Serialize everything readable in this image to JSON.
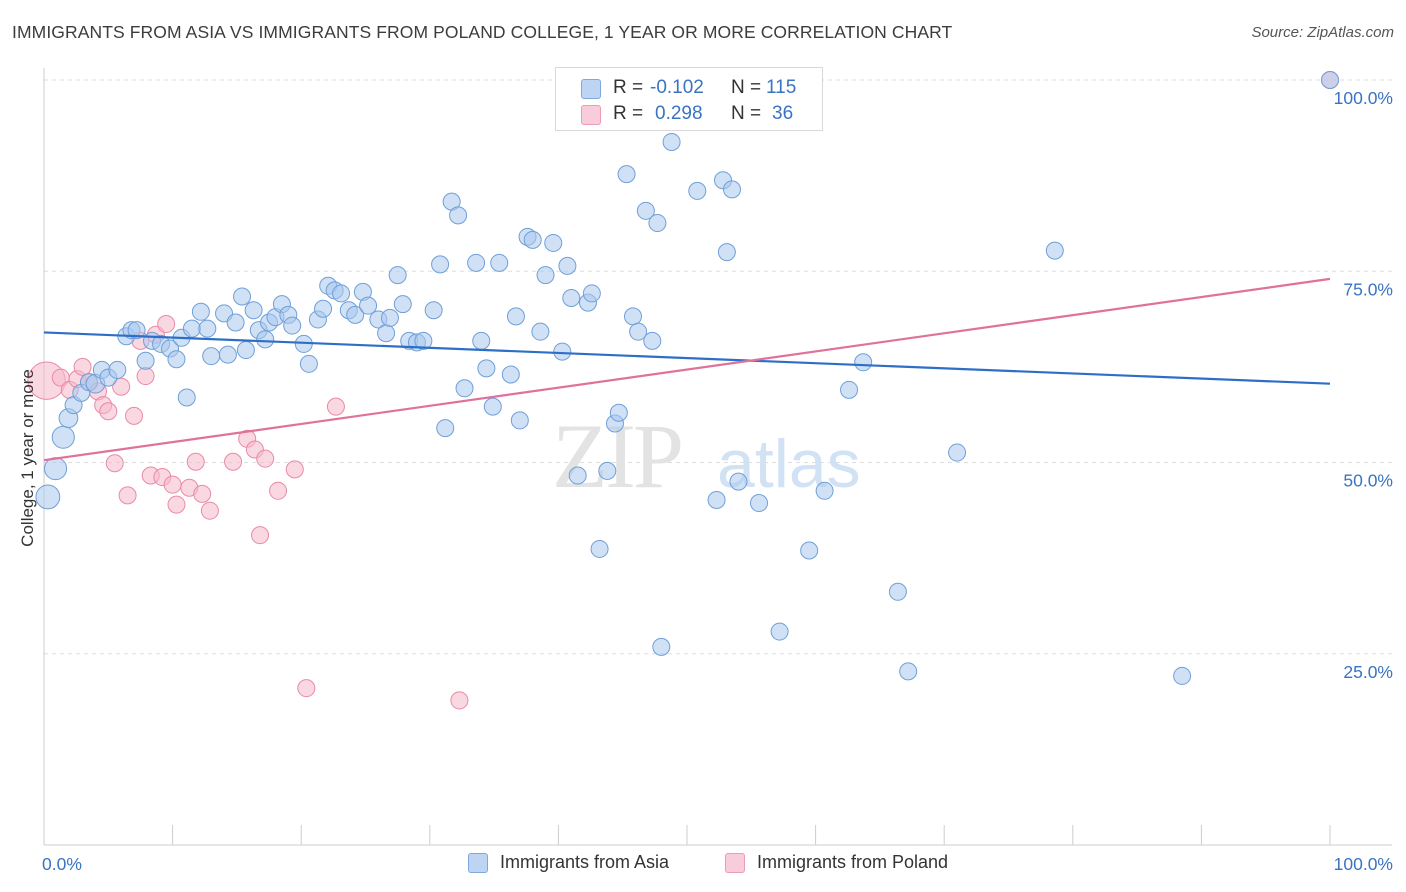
{
  "title": "IMMIGRANTS FROM ASIA VS IMMIGRANTS FROM POLAND COLLEGE, 1 YEAR OR MORE CORRELATION CHART",
  "source": "Source: ZipAtlas.com",
  "watermark": {
    "zip": "ZIP",
    "atlas": "atlas"
  },
  "legend_top": [
    {
      "r_label": "R =",
      "r_value": "-0.102",
      "n_label": "N =",
      "n_value": "115"
    },
    {
      "r_label": "R =",
      "r_value": "0.298",
      "n_label": "N =",
      "n_value": "36"
    }
  ],
  "legend_bottom": [
    {
      "label": "Immigrants from Asia"
    },
    {
      "label": "Immigrants from Poland"
    }
  ],
  "colors": {
    "asia_fill": "#aac8ee",
    "asia_stroke": "#6f9fd8",
    "asia_line": "#2d6fc7",
    "poland_fill": "#f5b8cb",
    "poland_stroke": "#e98aa8",
    "poland_line": "#e0719a",
    "axis_text": "#3a73c4",
    "grid": "#dddddd"
  },
  "chart_data": {
    "type": "scatter",
    "title": "IMMIGRANTS FROM ASIA VS IMMIGRANTS FROM POLAND COLLEGE, 1 YEAR OR MORE CORRELATION CHART",
    "xlabel": "",
    "ylabel": "College, 1 year or more",
    "xlim": [
      0,
      100
    ],
    "ylim": [
      0,
      100
    ],
    "x_tick_labels": [
      "0.0%",
      "100.0%"
    ],
    "y_ticks": [
      25,
      50,
      75,
      100
    ],
    "y_tick_labels": [
      "25.0%",
      "50.0%",
      "75.0%",
      "100.0%"
    ],
    "grid": "horizontal dashed",
    "legend_position": "top-center",
    "series": [
      {
        "name": "Immigrants from Asia",
        "r": -0.102,
        "n": 115,
        "trend": {
          "x": [
            0,
            100
          ],
          "y": [
            67.0,
            60.3
          ]
        },
        "points": [
          [
            0.3,
            45.5,
            1.4
          ],
          [
            0.9,
            49.2,
            1.3
          ],
          [
            1.5,
            53.3,
            1.3
          ],
          [
            1.9,
            55.8,
            1.1
          ],
          [
            2.3,
            57.5,
            1.0
          ],
          [
            2.9,
            59.1,
            1.0
          ],
          [
            3.5,
            60.5,
            1.0
          ],
          [
            4.0,
            60.3,
            1.1
          ],
          [
            4.5,
            62.1,
            1.0
          ],
          [
            5.0,
            61.1,
            1.0
          ],
          [
            5.7,
            62.1,
            1.0
          ],
          [
            6.4,
            66.5,
            1.0
          ],
          [
            6.8,
            67.3,
            1.0
          ],
          [
            7.2,
            67.3,
            1.0
          ],
          [
            7.9,
            63.3,
            1.0
          ],
          [
            8.4,
            65.9,
            1.0
          ],
          [
            9.1,
            65.5,
            1.0
          ],
          [
            9.8,
            64.9,
            1.0
          ],
          [
            10.3,
            63.5,
            1.0
          ],
          [
            10.7,
            66.3,
            1.0
          ],
          [
            11.1,
            58.5,
            1.0
          ],
          [
            11.5,
            67.5,
            1.0
          ],
          [
            12.2,
            69.7,
            1.0
          ],
          [
            12.7,
            67.5,
            1.0
          ],
          [
            13.0,
            63.9,
            1.0
          ],
          [
            14.0,
            69.5,
            1.0
          ],
          [
            14.3,
            64.1,
            1.0
          ],
          [
            14.9,
            68.3,
            1.0
          ],
          [
            15.4,
            71.7,
            1.0
          ],
          [
            15.7,
            64.7,
            1.0
          ],
          [
            16.3,
            69.9,
            1.0
          ],
          [
            16.7,
            67.3,
            1.0
          ],
          [
            17.2,
            66.1,
            1.0
          ],
          [
            17.5,
            68.3,
            1.0
          ],
          [
            18.0,
            69.0,
            1.0
          ],
          [
            18.5,
            70.7,
            1.0
          ],
          [
            19.0,
            69.3,
            1.0
          ],
          [
            19.3,
            67.9,
            1.0
          ],
          [
            20.2,
            65.5,
            1.0
          ],
          [
            20.6,
            62.9,
            1.0
          ],
          [
            21.3,
            68.7,
            1.0
          ],
          [
            21.7,
            70.1,
            1.0
          ],
          [
            22.1,
            73.1,
            1.0
          ],
          [
            22.6,
            72.5,
            1.0
          ],
          [
            23.1,
            72.1,
            1.0
          ],
          [
            23.7,
            69.9,
            1.0
          ],
          [
            24.2,
            69.3,
            1.0
          ],
          [
            24.8,
            72.3,
            1.0
          ],
          [
            25.2,
            70.5,
            1.0
          ],
          [
            26.0,
            68.7,
            1.0
          ],
          [
            26.6,
            66.9,
            1.0
          ],
          [
            26.9,
            68.9,
            1.0
          ],
          [
            27.5,
            74.5,
            1.0
          ],
          [
            27.9,
            70.7,
            1.0
          ],
          [
            28.4,
            65.9,
            1.0
          ],
          [
            29.0,
            65.7,
            1.0
          ],
          [
            29.5,
            65.9,
            1.0
          ],
          [
            30.3,
            69.9,
            1.0
          ],
          [
            30.8,
            75.9,
            1.0
          ],
          [
            31.2,
            54.5,
            1.0
          ],
          [
            31.7,
            84.1,
            1.0
          ],
          [
            32.2,
            82.3,
            1.0
          ],
          [
            32.7,
            59.7,
            1.0
          ],
          [
            33.6,
            76.1,
            1.0
          ],
          [
            34.0,
            65.9,
            1.0
          ],
          [
            34.4,
            62.3,
            1.0
          ],
          [
            34.9,
            57.3,
            1.0
          ],
          [
            35.4,
            76.1,
            1.0
          ],
          [
            36.3,
            61.5,
            1.0
          ],
          [
            36.7,
            69.1,
            1.0
          ],
          [
            37.0,
            55.5,
            1.0
          ],
          [
            37.6,
            79.5,
            1.0
          ],
          [
            38.0,
            79.1,
            1.0
          ],
          [
            38.6,
            67.1,
            1.0
          ],
          [
            39.0,
            74.5,
            1.0
          ],
          [
            39.6,
            78.7,
            1.0
          ],
          [
            40.3,
            64.5,
            1.0
          ],
          [
            40.7,
            75.7,
            1.0
          ],
          [
            41.0,
            71.5,
            1.0
          ],
          [
            41.5,
            48.3,
            1.0
          ],
          [
            42.3,
            70.9,
            1.0
          ],
          [
            42.6,
            72.1,
            1.0
          ],
          [
            43.2,
            38.7,
            1.0
          ],
          [
            43.8,
            48.9,
            1.0
          ],
          [
            44.4,
            55.1,
            1.0
          ],
          [
            44.7,
            56.5,
            1.0
          ],
          [
            45.3,
            87.7,
            1.0
          ],
          [
            45.8,
            69.1,
            1.0
          ],
          [
            46.2,
            67.1,
            1.0
          ],
          [
            46.8,
            82.9,
            1.0
          ],
          [
            47.3,
            65.9,
            1.0
          ],
          [
            47.7,
            81.3,
            1.0
          ],
          [
            48.0,
            25.9,
            1.0
          ],
          [
            48.8,
            91.9,
            1.0
          ],
          [
            50.8,
            85.5,
            1.0
          ],
          [
            52.3,
            45.1,
            1.0
          ],
          [
            52.8,
            86.9,
            1.0
          ],
          [
            53.1,
            77.5,
            1.0
          ],
          [
            53.5,
            85.7,
            1.0
          ],
          [
            54.0,
            47.5,
            1.0
          ],
          [
            55.6,
            44.7,
            1.0
          ],
          [
            57.2,
            27.9,
            1.0
          ],
          [
            59.5,
            38.5,
            1.0
          ],
          [
            60.7,
            46.3,
            1.0
          ],
          [
            62.6,
            59.5,
            1.0
          ],
          [
            63.7,
            63.1,
            1.0
          ],
          [
            66.4,
            33.1,
            1.0
          ],
          [
            67.2,
            22.7,
            1.0
          ],
          [
            71.0,
            51.3,
            1.0
          ],
          [
            78.6,
            77.7,
            1.0
          ],
          [
            88.5,
            22.1,
            1.0
          ],
          [
            100.0,
            100.0,
            1.0
          ]
        ]
      },
      {
        "name": "Immigrants from Poland",
        "r": 0.298,
        "n": 36,
        "trend": {
          "x": [
            0,
            100
          ],
          "y": [
            50.3,
            74.0
          ]
        },
        "points": [
          [
            0.2,
            60.7,
            2.2
          ],
          [
            1.3,
            61.1,
            1.0
          ],
          [
            2.0,
            59.5,
            1.0
          ],
          [
            2.6,
            60.9,
            1.0
          ],
          [
            3.0,
            62.5,
            1.0
          ],
          [
            3.5,
            60.5,
            1.0
          ],
          [
            4.2,
            59.3,
            1.0
          ],
          [
            4.6,
            57.5,
            1.0
          ],
          [
            5.0,
            56.7,
            1.0
          ],
          [
            5.5,
            49.9,
            1.0
          ],
          [
            6.0,
            59.9,
            1.0
          ],
          [
            6.5,
            45.7,
            1.0
          ],
          [
            7.0,
            56.1,
            1.0
          ],
          [
            7.5,
            65.9,
            1.0
          ],
          [
            7.9,
            61.3,
            1.0
          ],
          [
            8.3,
            48.3,
            1.0
          ],
          [
            8.7,
            66.7,
            1.0
          ],
          [
            9.2,
            48.1,
            1.0
          ],
          [
            9.5,
            68.1,
            1.0
          ],
          [
            10.0,
            47.1,
            1.0
          ],
          [
            10.3,
            44.5,
            1.0
          ],
          [
            11.3,
            46.7,
            1.0
          ],
          [
            11.8,
            50.1,
            1.0
          ],
          [
            12.3,
            45.9,
            1.0
          ],
          [
            12.9,
            43.7,
            1.0
          ],
          [
            14.7,
            50.1,
            1.0
          ],
          [
            15.8,
            53.1,
            1.0
          ],
          [
            16.4,
            51.7,
            1.0
          ],
          [
            16.8,
            40.5,
            1.0
          ],
          [
            17.2,
            50.5,
            1.0
          ],
          [
            18.2,
            46.3,
            1.0
          ],
          [
            19.5,
            49.1,
            1.0
          ],
          [
            20.4,
            20.5,
            1.0
          ],
          [
            22.7,
            57.3,
            1.0
          ],
          [
            32.3,
            18.9,
            1.0
          ],
          [
            100.0,
            100.0,
            1.0
          ]
        ]
      }
    ]
  }
}
